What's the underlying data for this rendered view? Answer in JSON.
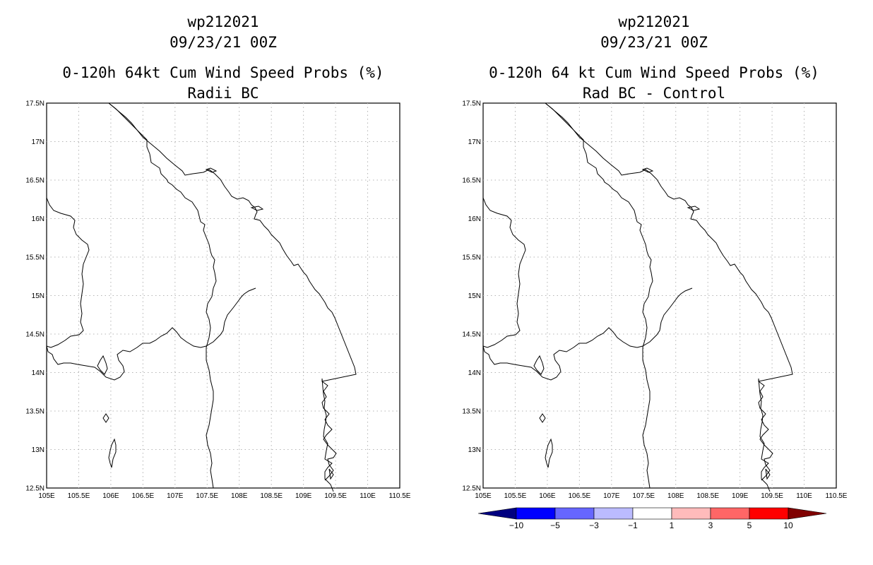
{
  "left_panel": {
    "title_line1": "wp212021",
    "title_line2": "09/23/21 00Z",
    "title_line3": "0-120h 64kt Cum Wind Speed Probs (%)",
    "title_line4": "Radii BC"
  },
  "right_panel": {
    "title_line1": "wp212021",
    "title_line2": "09/23/21 00Z",
    "title_line3": "0-120h 64 kt Cum Wind Speed Probs (%)",
    "title_line4": "Rad BC - Control"
  },
  "axes": {
    "lon_labels": [
      "105E",
      "105.5E",
      "106E",
      "106.5E",
      "107E",
      "107.5E",
      "108E",
      "108.5E",
      "109E",
      "109.5E",
      "110E",
      "110.5E"
    ],
    "lat_labels": [
      "17.5N",
      "17N",
      "16.5N",
      "16N",
      "15.5N",
      "15N",
      "14.5N",
      "14N",
      "13.5N",
      "13N",
      "12.5N"
    ]
  },
  "colorbar": {
    "labels": [
      "-10",
      "-5",
      "-3",
      "-1",
      "1",
      "3",
      "5",
      "10"
    ],
    "colors": [
      "#000080",
      "#0000ff",
      "#6666ff",
      "#bbbbff",
      "#ffffff",
      "#ffbbbb",
      "#ff6666",
      "#ff0000",
      "#800000"
    ]
  }
}
